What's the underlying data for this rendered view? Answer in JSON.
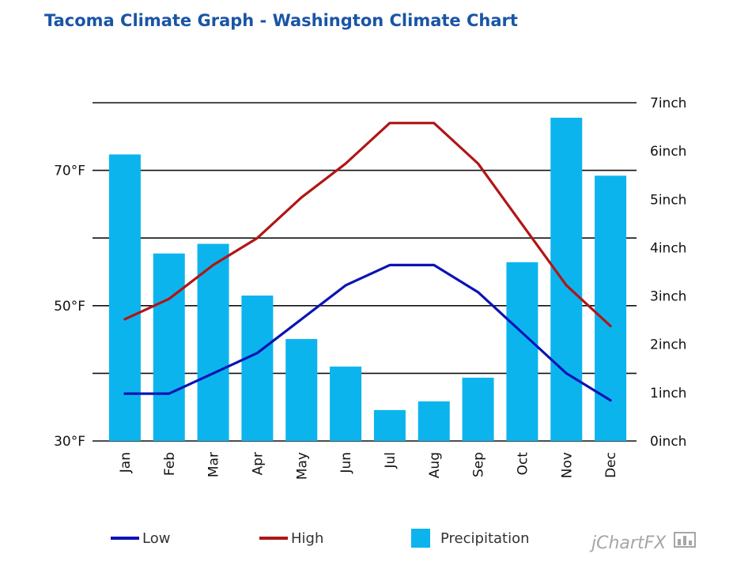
{
  "title": "Tacoma Climate Graph - Washington Climate Chart",
  "watermark": "jChartFX",
  "chart_data": {
    "type": "bar",
    "title": "Tacoma Climate Graph - Washington Climate Chart",
    "categories": [
      "Jan",
      "Feb",
      "Mar",
      "Apr",
      "May",
      "Jun",
      "Jul",
      "Aug",
      "Sep",
      "Oct",
      "Nov",
      "Dec"
    ],
    "left_axis": {
      "ticks": [
        "30°F",
        "50°F",
        "70°F"
      ],
      "tick_values": [
        30,
        50,
        70
      ],
      "range": [
        30,
        80
      ]
    },
    "right_axis": {
      "ticks": [
        "0inch",
        "1inch",
        "2inch",
        "3inch",
        "4inch",
        "5inch",
        "6inch",
        "7inch"
      ],
      "tick_values": [
        0,
        1,
        2,
        3,
        4,
        5,
        6,
        7
      ],
      "range": [
        0,
        7
      ]
    },
    "grid": true,
    "legend_position": "bottom",
    "series": [
      {
        "name": "Low",
        "type": "line",
        "axis": "left",
        "color": "#0a14b4",
        "values": [
          37,
          37,
          40,
          43,
          48,
          53,
          56,
          56,
          52,
          46,
          40,
          36
        ]
      },
      {
        "name": "High",
        "type": "line",
        "axis": "left",
        "color": "#b01616",
        "values": [
          48,
          51,
          56,
          60,
          66,
          71,
          77,
          77,
          71,
          62,
          53,
          47
        ]
      },
      {
        "name": "Precipitation",
        "type": "bar",
        "axis": "right",
        "color": "#0cb4ee",
        "values": [
          5.93,
          3.88,
          4.08,
          3.01,
          2.11,
          1.54,
          0.64,
          0.82,
          1.31,
          3.7,
          6.69,
          5.49
        ]
      }
    ]
  }
}
